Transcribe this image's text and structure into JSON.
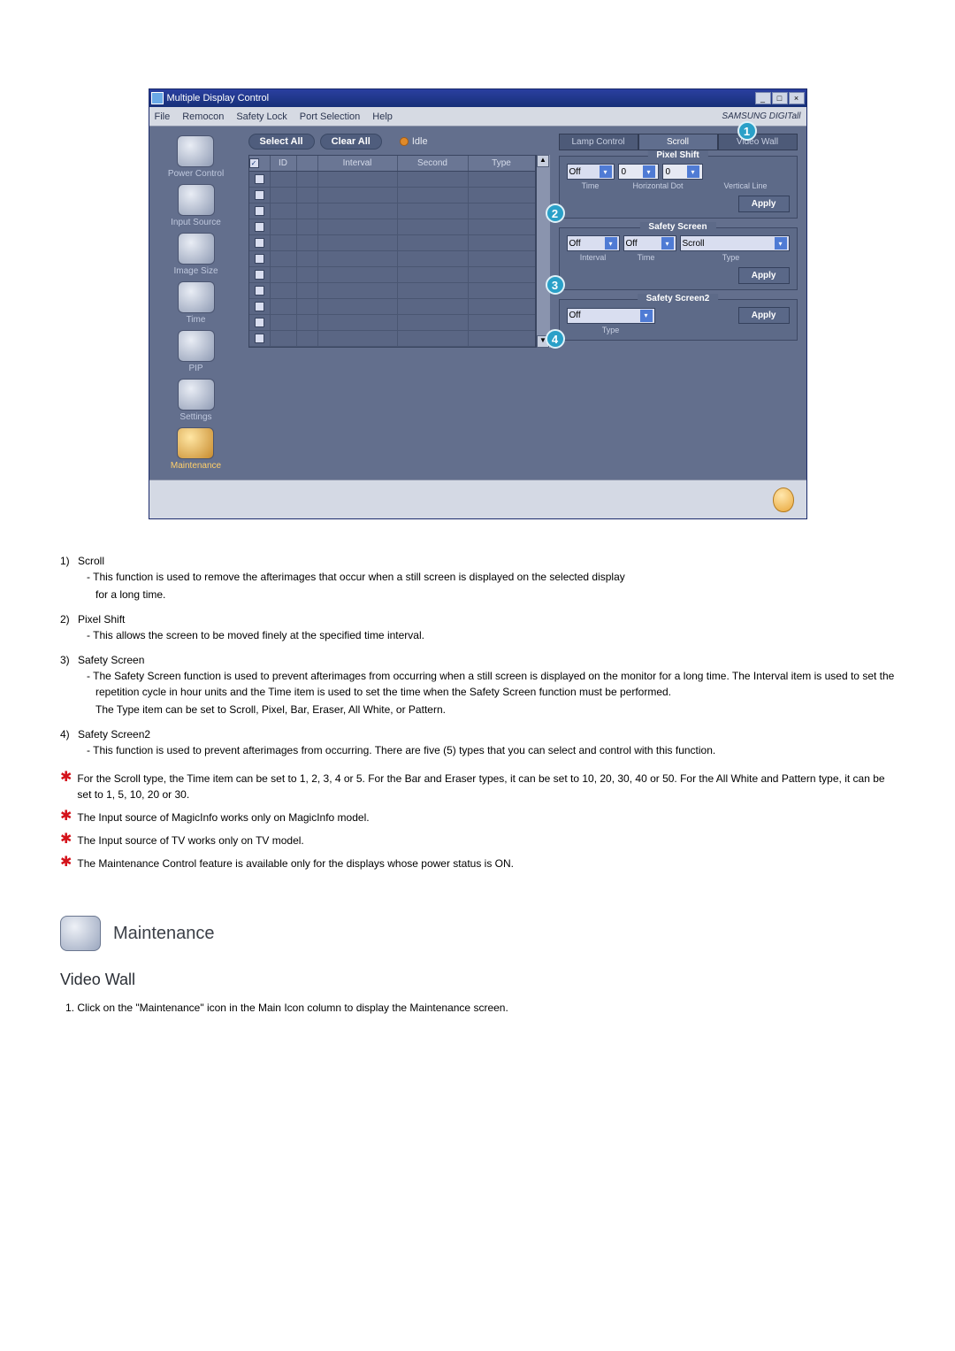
{
  "window": {
    "title": "Multiple Display Control",
    "menus": [
      "File",
      "Remocon",
      "Safety Lock",
      "Port Selection",
      "Help"
    ],
    "brand": "SAMSUNG DIGITall"
  },
  "sidebar": [
    {
      "label": "Power Control"
    },
    {
      "label": "Input Source"
    },
    {
      "label": "Image Size"
    },
    {
      "label": "Time"
    },
    {
      "label": "PIP"
    },
    {
      "label": "Settings"
    },
    {
      "label": "Maintenance",
      "active": true
    }
  ],
  "toolbar": {
    "select_all": "Select All",
    "clear_all": "Clear All",
    "idle": "Idle"
  },
  "grid": {
    "headers": {
      "chk": "",
      "id": "ID",
      "pw": "",
      "interval": "Interval",
      "second": "Second",
      "type": "Type"
    },
    "row_count": 11
  },
  "tabs": {
    "lamp": "Lamp Control",
    "scroll": "Scroll",
    "video": "Video Wall"
  },
  "pixel_shift": {
    "title": "Pixel Shift",
    "sel": "Off",
    "h": "0",
    "v": "0",
    "labels": {
      "time": "Time",
      "h": "Horizontal Dot",
      "v": "Vertical Line"
    },
    "apply": "Apply"
  },
  "safety_screen": {
    "title": "Safety Screen",
    "interval": "Off",
    "time": "Off",
    "type": "Scroll",
    "labels": {
      "interval": "Interval",
      "time": "Time",
      "type": "Type"
    },
    "apply": "Apply"
  },
  "safety_screen2": {
    "title": "Safety Screen2",
    "type": "Off",
    "labels": {
      "type": "Type"
    },
    "apply": "Apply"
  },
  "callouts": {
    "1": "1",
    "2": "2",
    "3": "3",
    "4": "4"
  },
  "doc": {
    "items": [
      {
        "n": "1)",
        "t": "Scroll",
        "d": "This function is used to remove the afterimages that occur when a still screen is displayed on the selected display\nfor a long time."
      },
      {
        "n": "2)",
        "t": "Pixel Shift",
        "d": "This allows the screen to be moved finely at the specified time interval."
      },
      {
        "n": "3)",
        "t": "Safety Screen",
        "d": "The Safety Screen function is used to prevent afterimages from occurring when a still screen is displayed on the monitor for a long time.  The Interval item is used to set the repetition cycle in hour units and the Time item is used to set the time when the Safety Screen function must be performed.\nThe Type item can be set to Scroll, Pixel, Bar, Eraser, All White, or Pattern."
      },
      {
        "n": "4)",
        "t": "Safety Screen2",
        "d": "This function is used to prevent afterimages from occurring. There are five (5) types that you can select and control with this function."
      }
    ],
    "stars": [
      "For the Scroll type, the Time item can be set to 1, 2, 3, 4 or 5. For the Bar and Eraser types, it can be set to 10, 20, 30, 40 or 50. For the All White and Pattern type, it can be set to 1, 5, 10, 20 or 30.",
      "The Input source of MagicInfo works only on MagicInfo model.",
      "The Input source of TV works only on TV model.",
      "The Maintenance Control feature is available only for the displays whose power status is ON."
    ],
    "section_title": "Maintenance",
    "sub_title": "Video Wall",
    "sub_step": "1.  Click on the \"Maintenance\" icon in the Main Icon column to display the Maintenance screen."
  },
  "colors": {
    "window_title": "#173078",
    "panel_bg": "#5d6a88",
    "accent": "#4f7bd4",
    "callout": "#2aa0c8",
    "star": "#d4121a"
  }
}
